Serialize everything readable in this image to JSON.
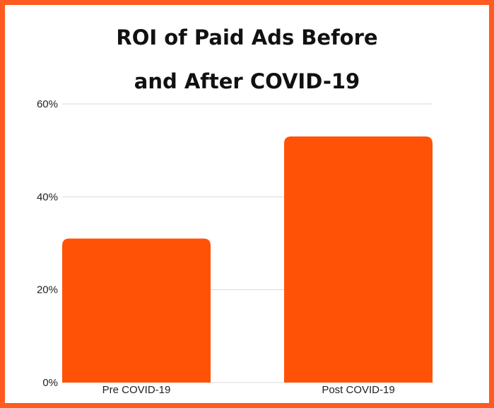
{
  "chart_data": {
    "type": "bar",
    "title_lines": [
      "ROI of Paid Ads Before",
      "and After COVID-19"
    ],
    "categories": [
      "Pre COVID-19",
      "Post COVID-19"
    ],
    "values": [
      31,
      53
    ],
    "ylim": [
      0,
      60
    ],
    "yticks": [
      0,
      20,
      40,
      60
    ],
    "ytick_labels": [
      "0%",
      "20%",
      "40%",
      "60%"
    ],
    "grid": true,
    "bar_color": "#ff5207",
    "border_color": "#ff5a1f"
  }
}
